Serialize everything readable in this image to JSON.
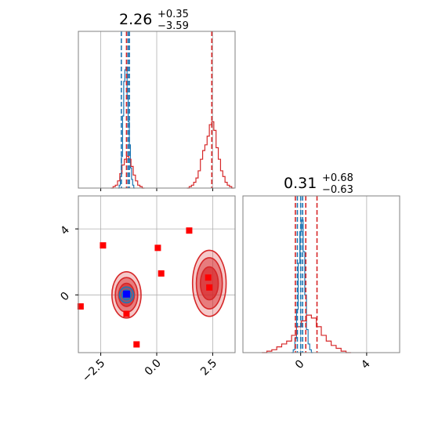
{
  "chart_data": [
    {
      "type": "histogram",
      "panel": "diag-x",
      "title": {
        "value": "2.26",
        "plus": "+0.35",
        "minus": "−3.59"
      },
      "xlim": [
        -3.5,
        3.5
      ],
      "grid": true,
      "xticks": [
        -2.5,
        0.0,
        2.5
      ],
      "series": [
        {
          "color": "#1f77b4",
          "bins_x": [
            -1.7,
            -1.65,
            -1.6,
            -1.55,
            -1.5,
            -1.45,
            -1.4,
            -1.35,
            -1.3,
            -1.25,
            -1.2,
            -1.15,
            -1.1,
            -1.05,
            -1.0
          ],
          "heights": [
            0.0,
            0.02,
            0.08,
            0.22,
            0.5,
            0.74,
            0.82,
            0.84,
            0.62,
            0.46,
            0.3,
            0.14,
            0.06,
            0.02,
            0.0
          ]
        },
        {
          "color": "#d62728",
          "bins_x": [
            -2.0,
            -1.9,
            -1.8,
            -1.7,
            -1.6,
            -1.5,
            -1.4,
            -1.3,
            -1.2,
            -1.1,
            -1.0,
            -0.9,
            -0.8,
            -0.7,
            -0.6
          ],
          "heights": [
            0.0,
            0.01,
            0.02,
            0.05,
            0.1,
            0.16,
            0.2,
            0.22,
            0.2,
            0.15,
            0.09,
            0.05,
            0.02,
            0.01,
            0.0
          ]
        },
        {
          "color": "#d62728",
          "bins_x": [
            1.4,
            1.5,
            1.6,
            1.7,
            1.8,
            1.9,
            2.0,
            2.1,
            2.2,
            2.3,
            2.4,
            2.5,
            2.6,
            2.7,
            2.8,
            2.9,
            3.0,
            3.1,
            3.2,
            3.3,
            3.4
          ],
          "heights": [
            0.0,
            0.01,
            0.02,
            0.04,
            0.07,
            0.12,
            0.2,
            0.26,
            0.3,
            0.36,
            0.44,
            0.46,
            0.4,
            0.28,
            0.2,
            0.12,
            0.08,
            0.04,
            0.02,
            0.01,
            0.0
          ]
        }
      ],
      "vlines": [
        {
          "x": -1.58,
          "color": "#1f77b4"
        },
        {
          "x": -1.28,
          "color": "#1f77b4"
        },
        {
          "x": -1.22,
          "color": "#1f77b4"
        },
        {
          "x": -1.35,
          "color": "#d62728"
        },
        {
          "x": 2.46,
          "color": "#d62728"
        }
      ]
    },
    {
      "type": "contour",
      "panel": "joint",
      "xlim": [
        -3.5,
        3.5
      ],
      "ylim": [
        -3.5,
        6.0
      ],
      "grid": true,
      "xticks": [
        -2.5,
        0.0,
        2.5
      ],
      "xtick_labels": [
        "−2.5",
        "0.0",
        "2.5"
      ],
      "yticks": [
        0,
        4
      ],
      "yticks_labels": [
        "0",
        "4"
      ],
      "contours": [
        {
          "color": "#d62728",
          "cx": -1.35,
          "cy": 0.0,
          "rx": [
            0.65,
            0.5,
            0.35
          ],
          "ry": [
            1.4,
            1.05,
            0.7
          ]
        },
        {
          "color": "#d62728",
          "cx": 2.35,
          "cy": 0.7,
          "rx": [
            0.75,
            0.58,
            0.4
          ],
          "ry": [
            2.0,
            1.55,
            1.0
          ]
        },
        {
          "color": "#1f77b4",
          "cx": -1.35,
          "cy": 0.0,
          "rx": [
            0.32,
            0.2
          ],
          "ry": [
            0.48,
            0.3
          ]
        }
      ],
      "points": [
        {
          "x": -3.4,
          "y": -0.7,
          "color": "#ff0000"
        },
        {
          "x": -2.4,
          "y": 3.0,
          "color": "#ff0000"
        },
        {
          "x": -1.35,
          "y": -1.15,
          "color": "#ff0000"
        },
        {
          "x": -0.9,
          "y": -3.0,
          "color": "#ff0000"
        },
        {
          "x": 0.05,
          "y": 2.85,
          "color": "#ff0000"
        },
        {
          "x": 0.2,
          "y": 1.3,
          "color": "#ff0000"
        },
        {
          "x": 1.45,
          "y": 3.9,
          "color": "#ff0000"
        },
        {
          "x": 2.3,
          "y": 1.05,
          "color": "#ff0000"
        },
        {
          "x": 2.35,
          "y": 0.45,
          "color": "#ff0000"
        },
        {
          "x": -1.35,
          "y": 0.05,
          "color": "#0000ff"
        }
      ]
    },
    {
      "type": "histogram",
      "panel": "diag-y",
      "title": {
        "value": "0.31",
        "plus": "+0.68",
        "minus": "−0.63"
      },
      "xlim": [
        -3.5,
        6.0
      ],
      "grid": true,
      "xticks": [
        0,
        4
      ],
      "xtick_labels": [
        "0",
        "4"
      ],
      "series": [
        {
          "color": "#1f77b4",
          "bins_x": [
            -0.5,
            -0.4,
            -0.3,
            -0.2,
            -0.1,
            0.0,
            0.1,
            0.2,
            0.3,
            0.4,
            0.5,
            0.6,
            0.7
          ],
          "heights": [
            0.0,
            0.02,
            0.1,
            0.3,
            0.62,
            0.84,
            0.92,
            0.7,
            0.4,
            0.16,
            0.06,
            0.02,
            0.0
          ]
        },
        {
          "color": "#d62728",
          "bins_x": [
            -2.2,
            -1.9,
            -1.6,
            -1.3,
            -1.0,
            -0.7,
            -0.4,
            -0.1,
            0.2,
            0.5,
            0.8,
            1.1,
            1.4,
            1.7,
            2.0,
            2.3,
            2.6,
            2.9
          ],
          "heights": [
            0.0,
            0.01,
            0.02,
            0.04,
            0.06,
            0.08,
            0.12,
            0.18,
            0.22,
            0.26,
            0.24,
            0.18,
            0.12,
            0.08,
            0.05,
            0.03,
            0.01,
            0.0
          ]
        }
      ],
      "vlines": [
        {
          "x": -0.2,
          "color": "#1f77b4"
        },
        {
          "x": 0.0,
          "color": "#1f77b4"
        },
        {
          "x": 0.12,
          "color": "#1f77b4"
        },
        {
          "x": -0.32,
          "color": "#d62728"
        },
        {
          "x": 0.31,
          "color": "#d62728"
        },
        {
          "x": 0.99,
          "color": "#d62728"
        }
      ]
    }
  ]
}
